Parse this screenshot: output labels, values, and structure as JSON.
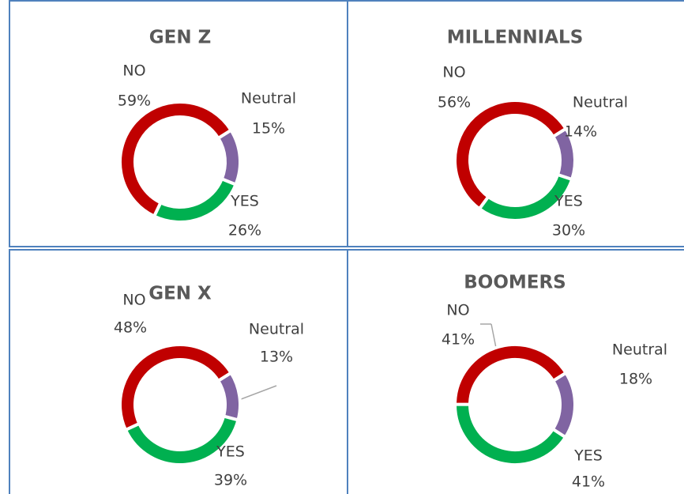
{
  "chart_data": [
    {
      "type": "pie",
      "title": "GEN Z",
      "categories": [
        "Neutral",
        "YES",
        "NO"
      ],
      "values": [
        15,
        26,
        59
      ],
      "value_labels": [
        "15%",
        "26%",
        "59%"
      ],
      "colors": [
        "#8064a2",
        "#00b050",
        "#c00000"
      ],
      "donut": true
    },
    {
      "type": "pie",
      "title": "MILLENNIALS",
      "categories": [
        "Neutral",
        "YES",
        "NO"
      ],
      "values": [
        14,
        30,
        56
      ],
      "value_labels": [
        "14%",
        "30%",
        "56%"
      ],
      "colors": [
        "#8064a2",
        "#00b050",
        "#c00000"
      ],
      "donut": true
    },
    {
      "type": "pie",
      "title": "GEN X",
      "categories": [
        "Neutral",
        "YES",
        "NO"
      ],
      "values": [
        13,
        39,
        48
      ],
      "value_labels": [
        "13%",
        "39%",
        "48%"
      ],
      "colors": [
        "#8064a2",
        "#00b050",
        "#c00000"
      ],
      "donut": true
    },
    {
      "type": "pie",
      "title": "BOOMERS",
      "categories": [
        "Neutral",
        "YES",
        "NO"
      ],
      "values": [
        18,
        41,
        41
      ],
      "value_labels": [
        "18%",
        "41%",
        "41%"
      ],
      "colors": [
        "#8064a2",
        "#00b050",
        "#c00000"
      ],
      "donut": true
    }
  ]
}
